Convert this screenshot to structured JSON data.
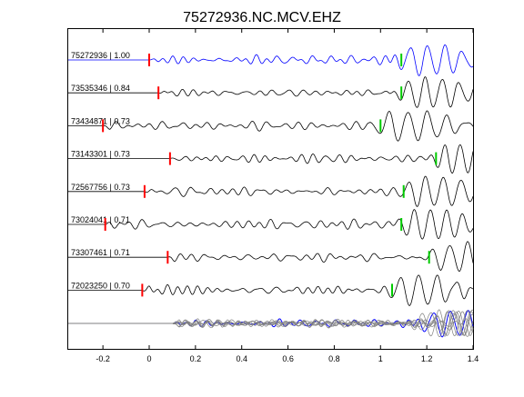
{
  "chart_data": {
    "type": "line",
    "title": "75272936.NC.MCV.EHZ",
    "xlabel": "",
    "ylabel": "",
    "xlim": [
      -0.35,
      1.4
    ],
    "x_ticks": [
      "-0.2",
      "0",
      "0.2",
      "0.4",
      "0.6",
      "0.8",
      "1",
      "1.2",
      "1.4"
    ],
    "x_tick_values": [
      -0.2,
      0,
      0.2,
      0.4,
      0.6,
      0.8,
      1.0,
      1.2,
      1.4
    ],
    "grid": false,
    "colors": {
      "reference": "#0000ff",
      "trace": "#000000",
      "stack": "#808080",
      "p_pick": "#ff0000",
      "s_pick": "#00cc00"
    },
    "series": [
      {
        "label": "75272936 | 1.00",
        "id": "75272936",
        "cc": 1.0,
        "p_pick": 0.0,
        "s_pick": 1.09,
        "reference": true
      },
      {
        "label": "73535346 | 0.84",
        "id": "73535346",
        "cc": 0.84,
        "p_pick": 0.04,
        "s_pick": 1.09
      },
      {
        "label": "73434871 | 0.73",
        "id": "73434871",
        "cc": 0.73,
        "p_pick": -0.2,
        "s_pick": 1.0
      },
      {
        "label": "73143301 | 0.73",
        "id": "73143301",
        "cc": 0.73,
        "p_pick": 0.09,
        "s_pick": 1.24
      },
      {
        "label": "72567756 | 0.73",
        "id": "72567756",
        "cc": 0.73,
        "p_pick": -0.02,
        "s_pick": 1.1
      },
      {
        "label": "73024041 | 0.71",
        "id": "73024041",
        "cc": 0.71,
        "p_pick": -0.19,
        "s_pick": 1.09
      },
      {
        "label": "73307461 | 0.71",
        "id": "73307461",
        "cc": 0.71,
        "p_pick": 0.08,
        "s_pick": 1.21
      },
      {
        "label": "72023250 | 0.70",
        "id": "72023250",
        "cc": 0.7,
        "p_pick": -0.03,
        "s_pick": 1.05
      }
    ]
  }
}
